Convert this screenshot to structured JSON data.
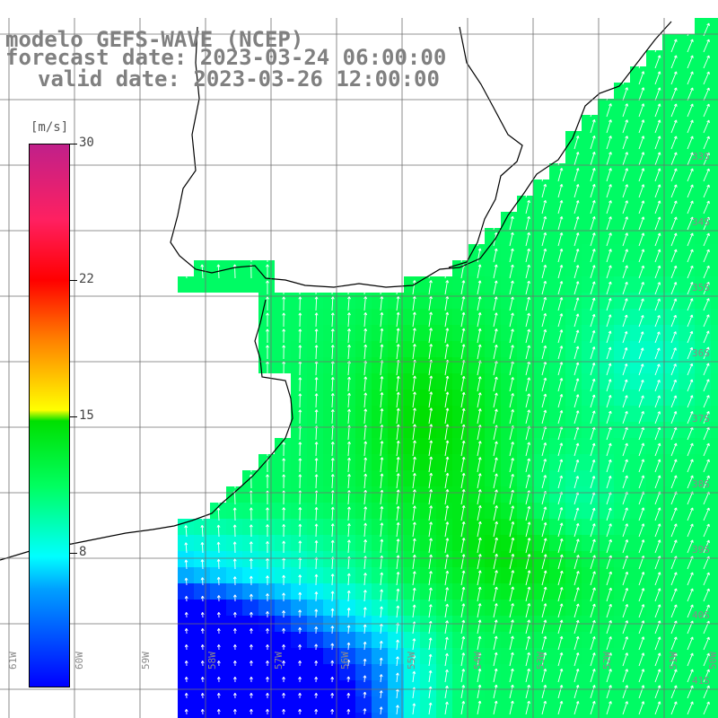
{
  "title": {
    "line1": "modelo GEFS-WAVE (NCEP)",
    "line2": "forecast date: 2023-03-24 06:00:00",
    "line3": "valid date: 2023-03-26 12:00:00"
  },
  "colorbar": {
    "unit": "[m/s]",
    "ticks": [
      {
        "label": "30",
        "value": 30
      },
      {
        "label": "22",
        "value": 22
      },
      {
        "label": "15",
        "value": 15
      },
      {
        "label": "8",
        "value": 8
      }
    ],
    "range": [
      0,
      30
    ],
    "colors": [
      "#0000ff",
      "#00a0ff",
      "#00ffff",
      "#00ff60",
      "#00e000",
      "#ffff00",
      "#ff8000",
      "#ff0000",
      "#c0208a"
    ]
  },
  "axes": {
    "lon_labels": [
      "61W",
      "60W",
      "59W",
      "58W",
      "57W",
      "56W",
      "55W",
      "54W",
      "53W",
      "52W",
      "51W",
      "50W"
    ],
    "lat_labels": [
      "33S",
      "34S",
      "35S",
      "36S",
      "37S",
      "38S",
      "39S",
      "40S",
      "41S"
    ]
  },
  "colors": {
    "land": "#ffffff",
    "coast": "#000000",
    "grid": "#6f6f6f",
    "arrows": "#ffffff",
    "label_gray": "#808080"
  }
}
